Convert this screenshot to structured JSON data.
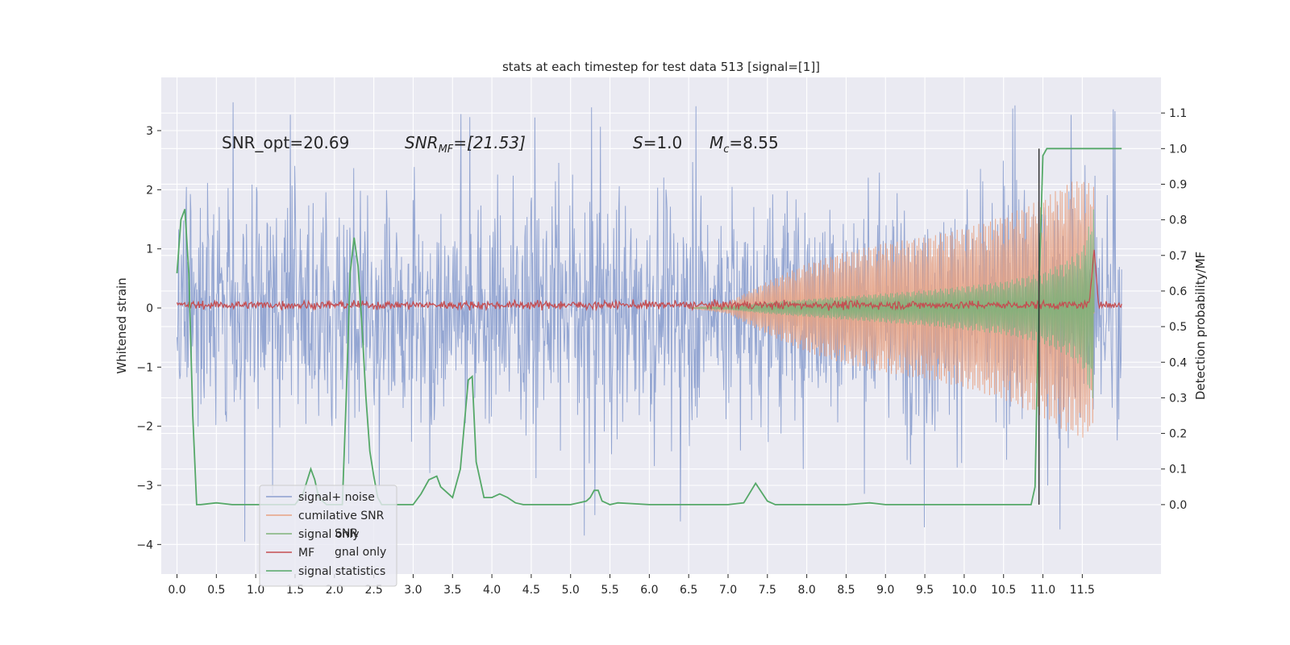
{
  "chart_data": {
    "type": "line",
    "title": "stats at each timestep for test data 513 [signal=[1]]",
    "xlabel": "",
    "ylabel": "Whitened strain",
    "y2label": "Detection probability/MF",
    "xlim": [
      -0.2,
      12.5
    ],
    "ylim": [
      -4.5,
      3.9
    ],
    "y2lim": [
      -0.195,
      1.2
    ],
    "x_ticks": [
      "0.0",
      "0.5",
      "1.0",
      "1.5",
      "2.0",
      "2.5",
      "3.0",
      "3.5",
      "4.0",
      "4.5",
      "5.0",
      "5.5",
      "6.0",
      "6.5",
      "7.0",
      "7.5",
      "8.0",
      "8.5",
      "9.0",
      "9.5",
      "10.0",
      "10.5",
      "11.0",
      "11.5"
    ],
    "y_ticks": [
      "3",
      "2",
      "1",
      "0",
      "−1",
      "−2",
      "−3",
      "−4"
    ],
    "y2_ticks": [
      "1.1",
      "1.0",
      "0.9",
      "0.8",
      "0.7",
      "0.6",
      "0.5",
      "0.4",
      "0.3",
      "0.2",
      "0.1",
      "0.0"
    ],
    "grid": true,
    "legend_position": "bottom-left",
    "legend_entries_left": [
      "signal+ noise",
      "cumilative SNR",
      "signal only",
      "MF",
      "signal statistics"
    ],
    "legend_entries_right": [
      "SNR",
      "gnal only"
    ],
    "annotations": {
      "snr_opt": "SNR_opt=20.69",
      "snr_mf_prefix": "SNR",
      "snr_mf_sub": "MF",
      "snr_mf_value": "=[21.53]",
      "s_label": "S",
      "s_value": "=1.0",
      "mc_label": "M",
      "mc_sub": "c",
      "mc_value": "=8.55"
    },
    "detection_marker_x": 10.95,
    "series": [
      {
        "name": "signal+ noise",
        "axis": "left",
        "style": "noise",
        "x_range": [
          0.0,
          12.0
        ],
        "amplitude_typical": 1.6,
        "peak_max": 3.5,
        "peak_min": -4.1,
        "color": "#8c9fcf"
      },
      {
        "name": "cumilative SNR",
        "axis": "left",
        "style": "envelope",
        "envelope_x": [
          6.5,
          7.0,
          7.5,
          8.0,
          8.5,
          9.0,
          9.5,
          10.0,
          10.5,
          11.0,
          11.3,
          11.5,
          11.65
        ],
        "envelope_y": [
          0.0,
          0.1,
          0.45,
          0.75,
          0.95,
          1.1,
          1.2,
          1.35,
          1.55,
          1.85,
          2.1,
          2.2,
          2.05
        ],
        "color": "#e8a283"
      },
      {
        "name": "signal only",
        "axis": "left",
        "style": "envelope",
        "envelope_x": [
          6.5,
          7.0,
          7.5,
          8.0,
          8.5,
          9.0,
          9.5,
          10.0,
          10.5,
          11.0,
          11.3,
          11.5,
          11.65
        ],
        "envelope_y": [
          0.0,
          0.03,
          0.1,
          0.15,
          0.2,
          0.25,
          0.3,
          0.37,
          0.45,
          0.6,
          0.8,
          1.0,
          1.7
        ],
        "color": "#7fb17a"
      },
      {
        "name": "MF",
        "axis": "left",
        "style": "noise_small",
        "x_range": [
          0.0,
          12.0
        ],
        "amplitude_typical": 0.1,
        "peak": {
          "x": 11.65,
          "y": 1.0
        },
        "color": "#c44e52"
      },
      {
        "name": "signal statistics",
        "axis": "right",
        "x": [
          0.0,
          0.05,
          0.1,
          0.15,
          0.2,
          0.25,
          0.3,
          0.5,
          0.7,
          1.0,
          1.2,
          1.5,
          1.6,
          1.7,
          1.75,
          1.8,
          1.9,
          2.0,
          2.1,
          2.15,
          2.2,
          2.25,
          2.3,
          2.35,
          2.4,
          2.45,
          2.5,
          2.55,
          2.6,
          2.7,
          2.8,
          3.0,
          3.1,
          3.2,
          3.3,
          3.35,
          3.5,
          3.6,
          3.7,
          3.75,
          3.8,
          3.9,
          4.0,
          4.1,
          4.2,
          4.3,
          4.4,
          4.5,
          5.0,
          5.1,
          5.2,
          5.25,
          5.3,
          5.35,
          5.4,
          5.5,
          5.6,
          6.0,
          6.5,
          7.0,
          7.2,
          7.35,
          7.5,
          7.6,
          8.0,
          8.5,
          8.8,
          9.0,
          10.0,
          10.5,
          10.85,
          10.9,
          10.95,
          11.0,
          11.05,
          11.1,
          11.2,
          12.0
        ],
        "values": [
          0.65,
          0.8,
          0.83,
          0.65,
          0.25,
          0.0,
          0.0,
          0.005,
          0.0,
          0.0,
          0.0,
          0.0,
          0.03,
          0.1,
          0.07,
          0.02,
          0.0,
          0.0,
          0.0,
          0.3,
          0.65,
          0.75,
          0.67,
          0.5,
          0.3,
          0.15,
          0.08,
          0.02,
          0.0,
          0.0,
          0.0,
          0.0,
          0.03,
          0.07,
          0.08,
          0.05,
          0.02,
          0.1,
          0.35,
          0.36,
          0.12,
          0.02,
          0.02,
          0.03,
          0.02,
          0.005,
          0.0,
          0.0,
          0.0,
          0.005,
          0.01,
          0.02,
          0.04,
          0.04,
          0.01,
          0.0,
          0.005,
          0.0,
          0.0,
          0.0,
          0.005,
          0.06,
          0.01,
          0.0,
          0.0,
          0.0,
          0.005,
          0.0,
          0.0,
          0.0,
          0.0,
          0.05,
          0.6,
          0.98,
          1.0,
          1.0,
          1.0,
          1.0
        ],
        "color": "#55a868"
      }
    ]
  }
}
